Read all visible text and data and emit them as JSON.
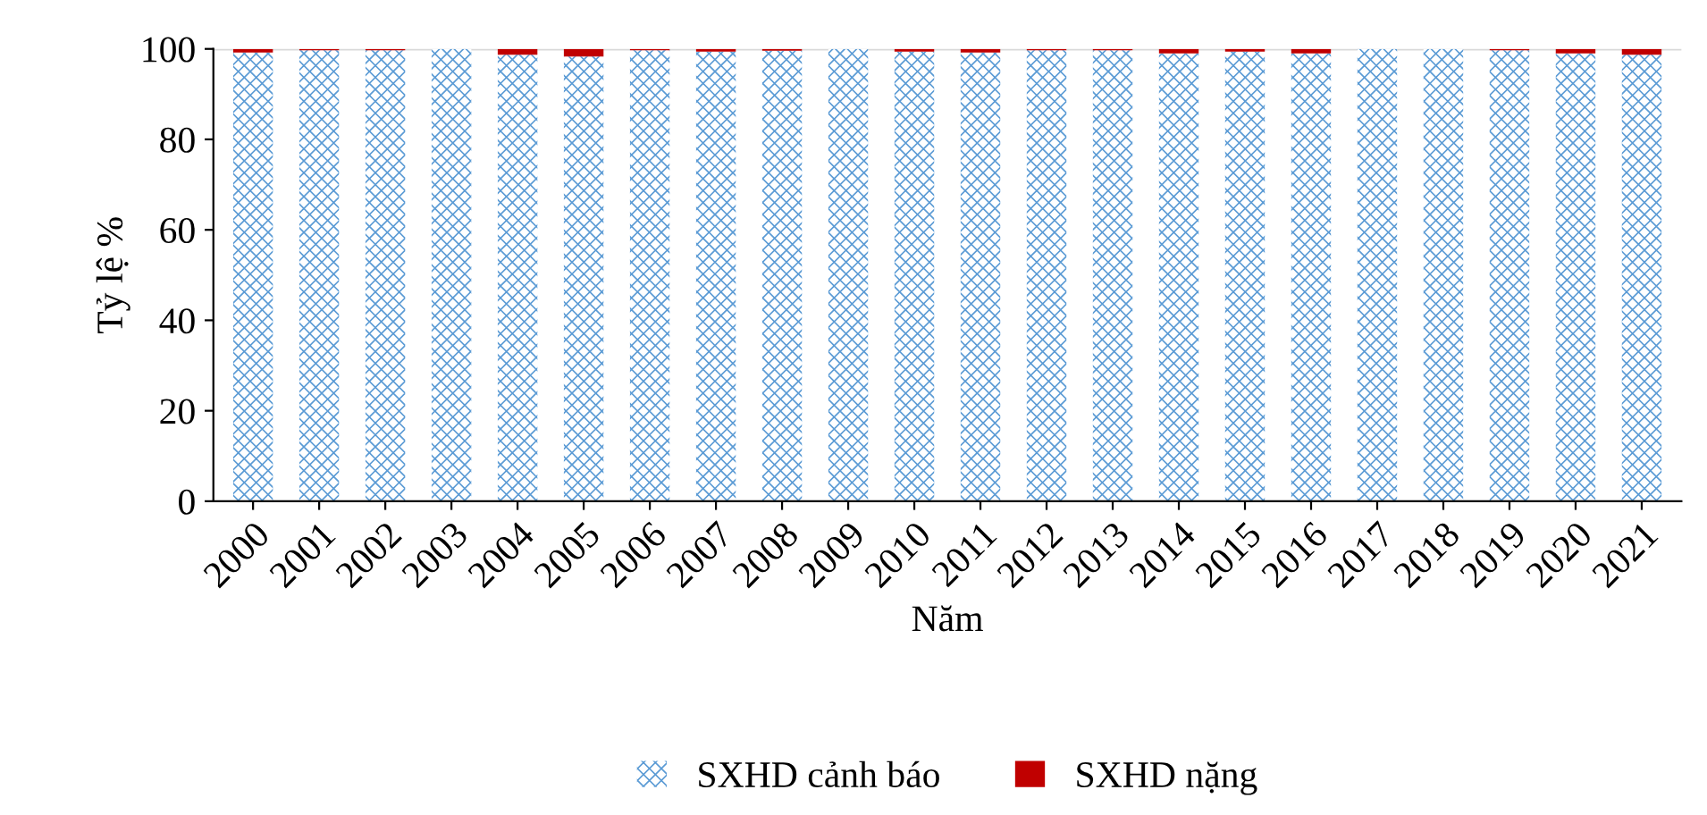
{
  "chart_data": {
    "type": "bar",
    "stacked": true,
    "xlabel": "Năm",
    "ylabel": "Tỷ lệ %",
    "categories": [
      "2000",
      "2001",
      "2002",
      "2003",
      "2004",
      "2005",
      "2006",
      "2007",
      "2008",
      "2009",
      "2010",
      "2011",
      "2012",
      "2013",
      "2014",
      "2015",
      "2016",
      "2017",
      "2018",
      "2019",
      "2020",
      "2021"
    ],
    "series": [
      {
        "name": "SXHD cảnh báo",
        "color": "#5b9bd5",
        "values": [
          99.2,
          99.7,
          99.7,
          100,
          98.7,
          98.3,
          99.7,
          99.4,
          99.6,
          100,
          99.4,
          99.2,
          99.7,
          99.7,
          99.0,
          99.4,
          99.0,
          100,
          100,
          99.7,
          99.0,
          98.7
        ]
      },
      {
        "name": "SXHD nặng",
        "color": "#c00000",
        "values": [
          0.8,
          0.3,
          0.3,
          0,
          1.3,
          1.7,
          0.3,
          0.6,
          0.4,
          0,
          0.6,
          0.8,
          0.3,
          0.3,
          1.0,
          0.6,
          1.0,
          0,
          0,
          0.3,
          1.0,
          1.3
        ]
      }
    ],
    "ylim": [
      0,
      100
    ],
    "yticks": [
      0,
      20,
      40,
      60,
      80,
      100
    ],
    "legend": "bottom"
  }
}
